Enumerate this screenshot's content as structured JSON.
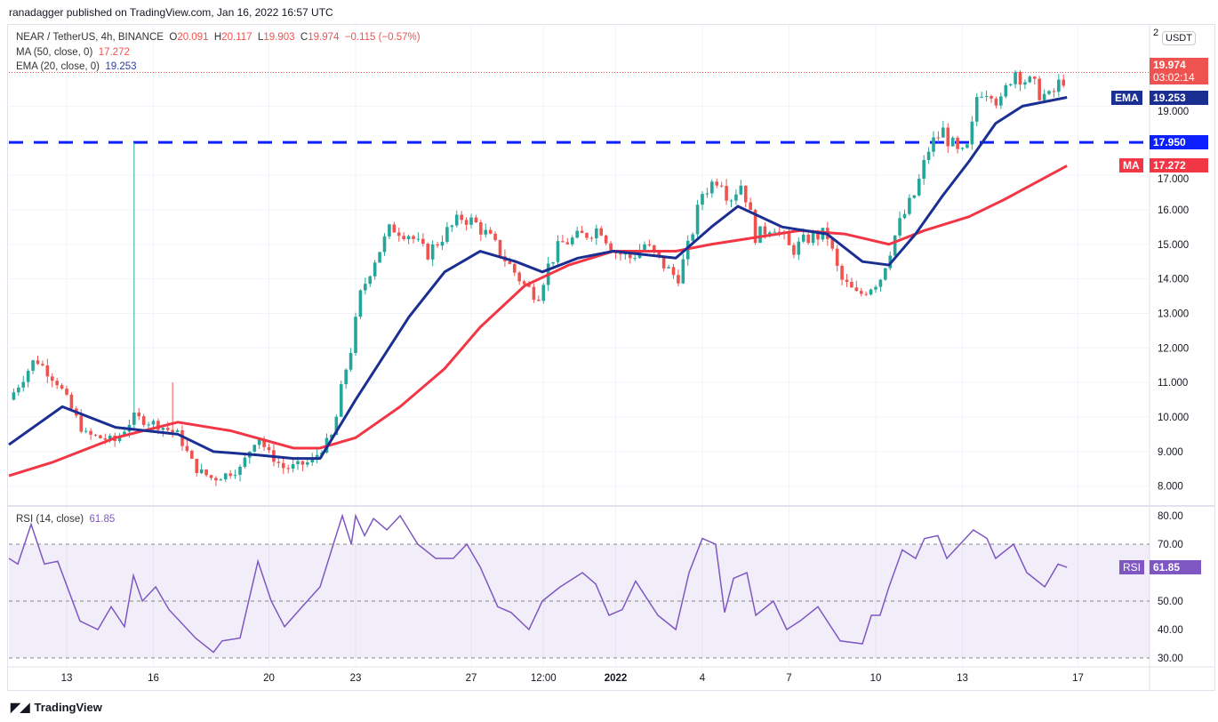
{
  "header": {
    "published": "ranadagger published on TradingView.com, Jan 16, 2022 16:57 UTC"
  },
  "legend": {
    "symbol": "NEAR / TetherUS, 4h, BINANCE",
    "o_label": "O",
    "o": "20.091",
    "h_label": "H",
    "h": "20.117",
    "l_label": "L",
    "l": "19.903",
    "c_label": "C",
    "c": "19.974",
    "change": "−0.115 (−0.57%)",
    "ma_label": "MA (50, close, 0)",
    "ma_value": "17.272",
    "ema_label": "EMA (20, close, 0)",
    "ema_value": "19.253",
    "rsi_label": "RSI (14, close)",
    "rsi_value": "61.85"
  },
  "axis": {
    "currency": "USDT",
    "top_partial": "2",
    "price_tag": "19.974",
    "countdown": "03:02:14",
    "ema_tag_label": "EMA",
    "ema_tag": "19.253",
    "level_tag": "17.950",
    "ma_tag_label": "MA",
    "ma_tag": "17.272",
    "rsi_tag_label": "RSI",
    "rsi_tag": "61.85"
  },
  "footer": {
    "brand": "TradingView"
  },
  "colors": {
    "up": "#26a69a",
    "down": "#ef5350",
    "ema": "#1b2f93",
    "ma": "#f23645",
    "level": "#0b1fff",
    "rsi": "#7e57c2"
  },
  "chart_data": [
    {
      "type": "candlestick",
      "title": "NEAR / TetherUS, 4h, BINANCE",
      "x_unit": "days since Dec 11 2021 00:00 UTC",
      "ylim": [
        7.6,
        20.3
      ],
      "y_ticks": [
        "19.000",
        "17.000",
        "16.000",
        "15.000",
        "14.000",
        "13.000",
        "12.000",
        "11.000",
        "10.000",
        "9.000",
        "8.000"
      ],
      "x_ticks": [
        {
          "label": "13",
          "day": 2
        },
        {
          "label": "16",
          "day": 5
        },
        {
          "label": "20",
          "day": 9
        },
        {
          "label": "23",
          "day": 12
        },
        {
          "label": "27",
          "day": 16
        },
        {
          "label": "12:00",
          "day": 18.5
        },
        {
          "label": "2022",
          "day": 21
        },
        {
          "label": "4",
          "day": 24
        },
        {
          "label": "7",
          "day": 27
        },
        {
          "label": "10",
          "day": 30
        },
        {
          "label": "13",
          "day": 33
        },
        {
          "label": "17",
          "day": 37
        }
      ],
      "horizontal_level": 17.95,
      "spikes": [
        {
          "day": 4.25,
          "high": 17.95
        },
        {
          "day": 5.62,
          "high": 11.0
        }
      ],
      "close_path": [
        [
          0,
          10.5
        ],
        [
          0.92,
          11.7
        ],
        [
          1.69,
          11.0
        ],
        [
          2.62,
          9.5
        ],
        [
          3.69,
          9.3
        ],
        [
          4.31,
          10.0
        ],
        [
          5.08,
          9.8
        ],
        [
          5.85,
          9.5
        ],
        [
          6.46,
          8.5
        ],
        [
          7.08,
          8.2
        ],
        [
          8.0,
          8.5
        ],
        [
          8.62,
          9.5
        ],
        [
          8.92,
          9.0
        ],
        [
          9.54,
          8.5
        ],
        [
          10.46,
          8.7
        ],
        [
          11.23,
          9.5
        ],
        [
          11.54,
          11.0
        ],
        [
          11.85,
          12.0
        ],
        [
          12.15,
          13.5
        ],
        [
          12.62,
          14.5
        ],
        [
          13.23,
          15.5
        ],
        [
          13.85,
          15.3
        ],
        [
          14.46,
          14.7
        ],
        [
          15.08,
          15.3
        ],
        [
          15.69,
          15.8
        ],
        [
          16.15,
          15.6
        ],
        [
          16.62,
          15.2
        ],
        [
          17.23,
          14.5
        ],
        [
          17.85,
          13.8
        ],
        [
          18.31,
          13.5
        ],
        [
          18.62,
          14.3
        ],
        [
          19.08,
          15.0
        ],
        [
          20.0,
          15.3
        ],
        [
          20.46,
          15.5
        ],
        [
          20.92,
          14.8
        ],
        [
          21.54,
          14.6
        ],
        [
          22.0,
          15.0
        ],
        [
          22.77,
          14.3
        ],
        [
          23.14,
          14.0
        ],
        [
          23.54,
          15.0
        ],
        [
          24.0,
          16.5
        ],
        [
          24.62,
          17.0
        ],
        [
          24.92,
          16.3
        ],
        [
          25.38,
          16.8
        ],
        [
          25.85,
          15.2
        ],
        [
          26.46,
          15.6
        ],
        [
          27.08,
          14.8
        ],
        [
          27.69,
          15.2
        ],
        [
          28.31,
          15.3
        ],
        [
          28.77,
          14.0
        ],
        [
          29.38,
          13.5
        ],
        [
          30.15,
          14.0
        ],
        [
          30.77,
          15.5
        ],
        [
          31.38,
          16.5
        ],
        [
          31.85,
          17.8
        ],
        [
          32.31,
          18.3
        ],
        [
          32.92,
          17.5
        ],
        [
          33.23,
          17.8
        ],
        [
          33.54,
          19.5
        ],
        [
          34.0,
          19.5
        ],
        [
          34.31,
          19.0
        ],
        [
          34.77,
          20.1
        ],
        [
          35.38,
          19.6
        ],
        [
          36.0,
          19.2
        ],
        [
          36.62,
          19.974
        ]
      ],
      "series": [
        {
          "name": "EMA (20, close, 0)",
          "points": [
            [
              0,
              9.2
            ],
            [
              1.85,
              10.3
            ],
            [
              3.69,
              9.7
            ],
            [
              5.85,
              9.5
            ],
            [
              7.08,
              9.0
            ],
            [
              8.62,
              8.9
            ],
            [
              9.85,
              8.8
            ],
            [
              10.77,
              8.8
            ],
            [
              12.0,
              10.5
            ],
            [
              13.85,
              12.9
            ],
            [
              15.08,
              14.2
            ],
            [
              16.31,
              14.8
            ],
            [
              17.54,
              14.5
            ],
            [
              18.46,
              14.2
            ],
            [
              19.69,
              14.6
            ],
            [
              20.92,
              14.8
            ],
            [
              23.08,
              14.6
            ],
            [
              24.31,
              15.5
            ],
            [
              25.23,
              16.1
            ],
            [
              26.77,
              15.5
            ],
            [
              28.31,
              15.3
            ],
            [
              29.54,
              14.5
            ],
            [
              30.46,
              14.4
            ],
            [
              31.38,
              15.3
            ],
            [
              32.31,
              16.4
            ],
            [
              33.23,
              17.4
            ],
            [
              34.15,
              18.5
            ],
            [
              35.08,
              19.0
            ],
            [
              36.62,
              19.253
            ]
          ]
        },
        {
          "name": "MA (50, close, 0)",
          "points": [
            [
              0,
              8.3
            ],
            [
              1.54,
              8.7
            ],
            [
              3.69,
              9.4
            ],
            [
              5.85,
              9.85
            ],
            [
              7.69,
              9.6
            ],
            [
              9.85,
              9.1
            ],
            [
              10.77,
              9.1
            ],
            [
              12.0,
              9.4
            ],
            [
              13.54,
              10.3
            ],
            [
              15.08,
              11.4
            ],
            [
              16.31,
              12.6
            ],
            [
              17.85,
              13.8
            ],
            [
              19.38,
              14.4
            ],
            [
              20.92,
              14.8
            ],
            [
              23.08,
              14.8
            ],
            [
              24.31,
              15.0
            ],
            [
              25.85,
              15.2
            ],
            [
              27.38,
              15.4
            ],
            [
              28.92,
              15.3
            ],
            [
              30.46,
              15.0
            ],
            [
              31.69,
              15.4
            ],
            [
              33.23,
              15.8
            ],
            [
              34.46,
              16.3
            ],
            [
              36.62,
              17.272
            ]
          ]
        }
      ]
    },
    {
      "type": "line",
      "title": "RSI (14, close)",
      "ylim": [
        28,
        82
      ],
      "y_ticks": [
        "80.00",
        "70.00",
        "50.00",
        "40.00",
        "30.00"
      ],
      "band": [
        30,
        70
      ],
      "points": [
        [
          0,
          65
        ],
        [
          0.31,
          63
        ],
        [
          0.77,
          77
        ],
        [
          1.23,
          63
        ],
        [
          1.69,
          64
        ],
        [
          2.46,
          43
        ],
        [
          3.08,
          40
        ],
        [
          3.54,
          48
        ],
        [
          4.0,
          41
        ],
        [
          4.31,
          59
        ],
        [
          4.62,
          50
        ],
        [
          5.08,
          55
        ],
        [
          5.54,
          47
        ],
        [
          6.46,
          37
        ],
        [
          7.08,
          32
        ],
        [
          7.38,
          36
        ],
        [
          8.0,
          37
        ],
        [
          8.62,
          64
        ],
        [
          9.08,
          50
        ],
        [
          9.54,
          41
        ],
        [
          10.15,
          48
        ],
        [
          10.77,
          55
        ],
        [
          11.23,
          70
        ],
        [
          11.54,
          80
        ],
        [
          11.85,
          70
        ],
        [
          12.0,
          80
        ],
        [
          12.31,
          73
        ],
        [
          12.62,
          79
        ],
        [
          13.08,
          75
        ],
        [
          13.54,
          80
        ],
        [
          14.15,
          70
        ],
        [
          14.77,
          65
        ],
        [
          15.38,
          65
        ],
        [
          15.85,
          70
        ],
        [
          16.31,
          62
        ],
        [
          16.92,
          48
        ],
        [
          17.38,
          46
        ],
        [
          18.0,
          40
        ],
        [
          18.46,
          50
        ],
        [
          19.08,
          55
        ],
        [
          19.85,
          60
        ],
        [
          20.31,
          56
        ],
        [
          20.77,
          45
        ],
        [
          21.23,
          47
        ],
        [
          21.69,
          57
        ],
        [
          22.46,
          45
        ],
        [
          23.08,
          40
        ],
        [
          23.54,
          60
        ],
        [
          24.0,
          72
        ],
        [
          24.46,
          70
        ],
        [
          24.77,
          46
        ],
        [
          25.08,
          58
        ],
        [
          25.54,
          60
        ],
        [
          25.85,
          45
        ],
        [
          26.46,
          50
        ],
        [
          26.92,
          40
        ],
        [
          27.38,
          43
        ],
        [
          28.0,
          48
        ],
        [
          28.77,
          36
        ],
        [
          29.54,
          35
        ],
        [
          29.85,
          45
        ],
        [
          30.15,
          45
        ],
        [
          30.46,
          55
        ],
        [
          30.92,
          68
        ],
        [
          31.38,
          65
        ],
        [
          31.69,
          72
        ],
        [
          32.15,
          73
        ],
        [
          32.46,
          65
        ],
        [
          32.92,
          70
        ],
        [
          33.38,
          75
        ],
        [
          33.85,
          72
        ],
        [
          34.15,
          65
        ],
        [
          34.77,
          70
        ],
        [
          35.23,
          60
        ],
        [
          35.85,
          55
        ],
        [
          36.31,
          63
        ],
        [
          36.62,
          61.85
        ]
      ]
    }
  ]
}
